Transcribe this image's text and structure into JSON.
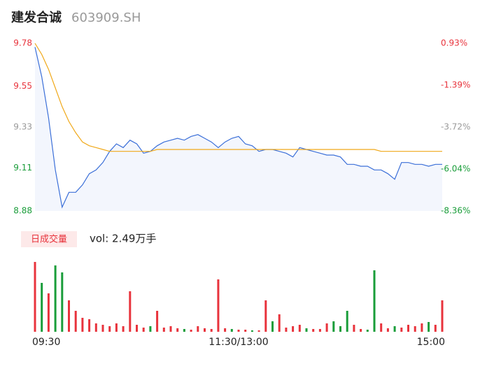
{
  "header": {
    "title": "建发合诚",
    "code": "603909.SH"
  },
  "chart_data": [
    {
      "type": "line",
      "x": [
        0,
        4,
        8,
        12,
        16,
        20,
        24,
        28,
        32,
        36,
        40,
        44,
        48,
        52,
        56,
        60,
        64,
        68,
        72,
        76,
        80,
        84,
        88,
        92,
        96,
        100,
        104,
        108,
        112,
        116,
        120,
        124,
        128,
        132,
        136,
        140,
        144,
        148,
        152,
        156,
        160,
        164,
        168,
        172,
        176,
        180,
        184,
        188,
        192,
        196,
        200,
        204,
        208,
        212,
        216,
        220,
        224,
        228,
        232,
        236,
        240
      ],
      "xlim": [
        0,
        240
      ],
      "xticks": [
        {
          "value": 0,
          "label": "09:30"
        },
        {
          "value": 120,
          "label": "11:30/13:00"
        },
        {
          "value": 240,
          "label": "15:00"
        }
      ],
      "ylim": [
        8.88,
        9.78
      ],
      "yticks": [
        9.78,
        9.55,
        9.33,
        9.11,
        8.88
      ],
      "ytick_colors": [
        "#e8333c",
        "#e8333c",
        "#999999",
        "#1a9d3a",
        "#1a9d3a"
      ],
      "y2lim": [
        -8.36,
        0.93
      ],
      "y2ticks": [
        {
          "value": 0.93,
          "label": "0.93%"
        },
        {
          "value": -1.39,
          "label": "-1.39%"
        },
        {
          "value": -3.72,
          "label": "-3.72%"
        },
        {
          "value": -6.04,
          "label": "-6.04%"
        },
        {
          "value": -8.36,
          "label": "-8.36%"
        }
      ],
      "y2tick_colors": [
        "#e8333c",
        "#e8333c",
        "#999999",
        "#1a9d3a",
        "#1a9d3a"
      ],
      "series": [
        {
          "color": "#3b6fd8",
          "values": [
            9.76,
            9.6,
            9.38,
            9.1,
            8.9,
            8.98,
            8.98,
            9.02,
            9.08,
            9.1,
            9.14,
            9.2,
            9.24,
            9.22,
            9.26,
            9.24,
            9.19,
            9.2,
            9.23,
            9.25,
            9.26,
            9.27,
            9.26,
            9.28,
            9.29,
            9.27,
            9.25,
            9.22,
            9.25,
            9.27,
            9.28,
            9.24,
            9.23,
            9.2,
            9.21,
            9.21,
            9.2,
            9.19,
            9.17,
            9.22,
            9.21,
            9.2,
            9.19,
            9.18,
            9.18,
            9.17,
            9.13,
            9.13,
            9.12,
            9.12,
            9.1,
            9.1,
            9.08,
            9.05,
            9.14,
            9.14,
            9.13,
            9.13,
            9.12,
            9.13,
            9.13
          ]
        },
        {
          "color": "#f0a818",
          "values": [
            9.78,
            9.72,
            9.64,
            9.54,
            9.44,
            9.36,
            9.3,
            9.25,
            9.23,
            9.22,
            9.21,
            9.2,
            9.2,
            9.2,
            9.2,
            9.2,
            9.2,
            9.2,
            9.21,
            9.21,
            9.21,
            9.21,
            9.21,
            9.21,
            9.21,
            9.21,
            9.21,
            9.21,
            9.21,
            9.21,
            9.21,
            9.21,
            9.21,
            9.21,
            9.21,
            9.21,
            9.21,
            9.21,
            9.21,
            9.21,
            9.21,
            9.21,
            9.21,
            9.21,
            9.21,
            9.21,
            9.21,
            9.21,
            9.21,
            9.21,
            9.21,
            9.2,
            9.2,
            9.2,
            9.2,
            9.2,
            9.2,
            9.2,
            9.2,
            9.2,
            9.2
          ]
        }
      ]
    },
    {
      "type": "bar",
      "label": "日成交量",
      "value_text": "vol: 2.49万手",
      "ylim": [
        0,
        100
      ],
      "values": [
        100,
        70,
        55,
        95,
        85,
        45,
        30,
        20,
        18,
        12,
        10,
        8,
        12,
        8,
        58,
        10,
        6,
        8,
        30,
        6,
        8,
        5,
        4,
        3,
        8,
        5,
        4,
        75,
        5,
        4,
        3,
        3,
        2,
        2,
        45,
        15,
        25,
        6,
        8,
        10,
        5,
        4,
        4,
        12,
        15,
        8,
        30,
        10,
        4,
        3,
        88,
        12,
        5,
        8,
        6,
        10,
        8,
        12,
        14,
        10,
        45
      ],
      "colors": [
        "#e8333c",
        "#1a9d3a",
        "#e8333c",
        "#1a9d3a",
        "#1a9d3a",
        "#e8333c",
        "#e8333c",
        "#e8333c",
        "#e8333c",
        "#e8333c",
        "#e8333c",
        "#e8333c",
        "#e8333c",
        "#e8333c",
        "#e8333c",
        "#e8333c",
        "#e8333c",
        "#1a9d3a",
        "#e8333c",
        "#e8333c",
        "#e8333c",
        "#e8333c",
        "#1a9d3a",
        "#e8333c",
        "#e8333c",
        "#e8333c",
        "#e8333c",
        "#e8333c",
        "#e8333c",
        "#1a9d3a",
        "#e8333c",
        "#e8333c",
        "#1a9d3a",
        "#e8333c",
        "#e8333c",
        "#1a9d3a",
        "#e8333c",
        "#e8333c",
        "#e8333c",
        "#e8333c",
        "#1a9d3a",
        "#e8333c",
        "#e8333c",
        "#e8333c",
        "#1a9d3a",
        "#1a9d3a",
        "#1a9d3a",
        "#e8333c",
        "#e8333c",
        "#1a9d3a",
        "#1a9d3a",
        "#e8333c",
        "#e8333c",
        "#1a9d3a",
        "#e8333c",
        "#e8333c",
        "#e8333c",
        "#e8333c",
        "#1a9d3a",
        "#e8333c",
        "#e8333c"
      ]
    }
  ]
}
